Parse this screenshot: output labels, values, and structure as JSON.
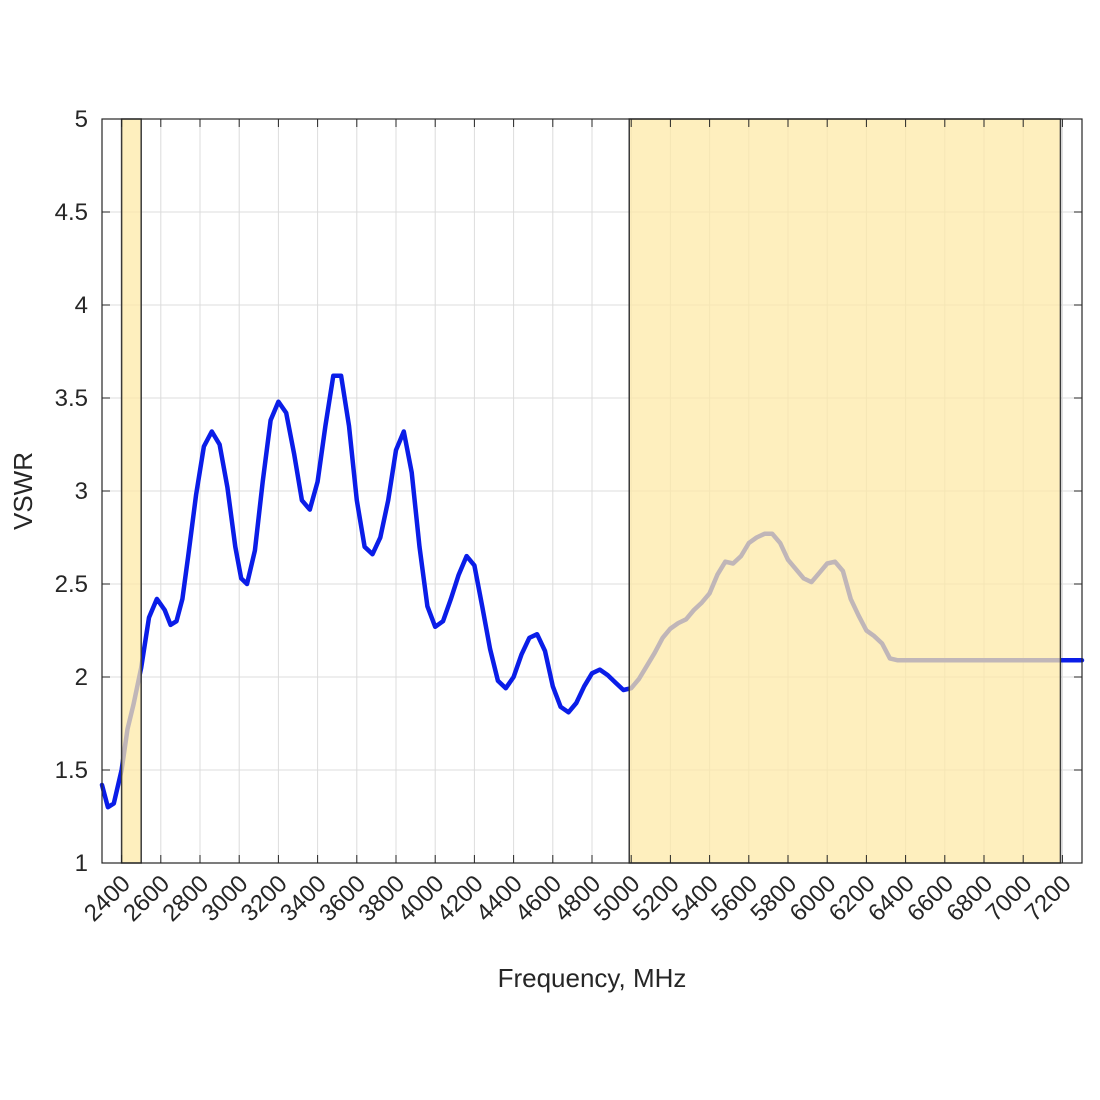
{
  "chart_data": {
    "type": "line",
    "title": "",
    "xlabel": "Frequency, MHz",
    "ylabel": "VSWR",
    "xlim": [
      2300,
      7300
    ],
    "ylim": [
      1,
      5
    ],
    "grid": true,
    "legend": "none",
    "xticks": [
      2400,
      2600,
      2800,
      3000,
      3200,
      3400,
      3600,
      3800,
      4000,
      4200,
      4400,
      4600,
      4800,
      5000,
      5200,
      5400,
      5600,
      5800,
      6000,
      6200,
      6400,
      6600,
      6800,
      7000,
      7200
    ],
    "yticks": [
      1,
      1.5,
      2,
      2.5,
      3,
      3.5,
      4,
      4.5,
      5
    ],
    "ytick_labels": [
      "1",
      "1.5",
      "2",
      "2.5",
      "3",
      "3.5",
      "4",
      "4.5",
      "5"
    ],
    "bands": [
      {
        "x_start": 2400,
        "x_end": 2500,
        "color": "#fde9a8"
      },
      {
        "x_start": 4990,
        "x_end": 7190,
        "color": "#fde9a8"
      }
    ],
    "series": [
      {
        "color": "#0a1de8",
        "x": [
          2300,
          2330,
          2360,
          2400,
          2430,
          2460,
          2500,
          2540,
          2580,
          2620,
          2650,
          2680,
          2710,
          2740,
          2780,
          2820,
          2860,
          2900,
          2940,
          2980,
          3010,
          3040,
          3080,
          3120,
          3160,
          3200,
          3240,
          3280,
          3320,
          3360,
          3400,
          3440,
          3480,
          3520,
          3560,
          3600,
          3640,
          3680,
          3720,
          3760,
          3800,
          3840,
          3880,
          3920,
          3960,
          4000,
          4040,
          4080,
          4120,
          4160,
          4200,
          4240,
          4280,
          4320,
          4360,
          4400,
          4440,
          4480,
          4520,
          4560,
          4600,
          4640,
          4680,
          4720,
          4760,
          4800,
          4840,
          4880,
          4920,
          4960,
          5000,
          5040,
          5080,
          5120,
          5160,
          5200,
          5240,
          5280,
          5320,
          5360,
          5400,
          5440,
          5480,
          5520,
          5560,
          5600,
          5640,
          5680,
          5720,
          5760,
          5800,
          5840,
          5880,
          5920,
          5960,
          6000,
          6040,
          6080,
          6120,
          6160,
          6200,
          6240,
          6280,
          6320,
          6360,
          6400,
          6440,
          6480,
          6520,
          6560,
          6600,
          6640,
          6680,
          6720,
          6760,
          6800,
          6840,
          6880,
          6920,
          6960,
          7000,
          7040,
          7080,
          7120,
          7160,
          7200,
          7240,
          7300
        ],
        "y": [
          1.42,
          1.3,
          1.32,
          1.5,
          1.72,
          1.85,
          2.05,
          2.32,
          2.42,
          2.36,
          2.28,
          2.3,
          2.42,
          2.65,
          2.98,
          3.24,
          3.32,
          3.25,
          3.02,
          2.7,
          2.53,
          2.5,
          2.68,
          3.05,
          3.38,
          3.48,
          3.42,
          3.2,
          2.95,
          2.9,
          3.05,
          3.35,
          3.62,
          3.62,
          3.35,
          2.95,
          2.7,
          2.66,
          2.75,
          2.95,
          3.22,
          3.32,
          3.1,
          2.7,
          2.38,
          2.27,
          2.3,
          2.42,
          2.55,
          2.65,
          2.6,
          2.38,
          2.15,
          1.98,
          1.94,
          2.0,
          2.12,
          2.21,
          2.23,
          2.14,
          1.95,
          1.84,
          1.81,
          1.86,
          1.95,
          2.02,
          2.04,
          2.01,
          1.97,
          1.93,
          1.94,
          1.99,
          2.06,
          2.13,
          2.21,
          2.26,
          2.29,
          2.31,
          2.36,
          2.4,
          2.45,
          2.55,
          2.62,
          2.61,
          2.65,
          2.72,
          2.75,
          2.77,
          2.77,
          2.72,
          2.63,
          2.58,
          2.53,
          2.51,
          2.56,
          2.61,
          2.62,
          2.57,
          2.42,
          2.33,
          2.25,
          2.22,
          2.18,
          2.1,
          2.09,
          2.09,
          2.09,
          2.09,
          2.09,
          2.09,
          2.09,
          2.09,
          2.09,
          2.09,
          2.09,
          2.09,
          2.09,
          2.09,
          2.09,
          2.09,
          2.09,
          2.09,
          2.09,
          2.09,
          2.09,
          2.09,
          2.09,
          2.09
        ]
      }
    ]
  }
}
